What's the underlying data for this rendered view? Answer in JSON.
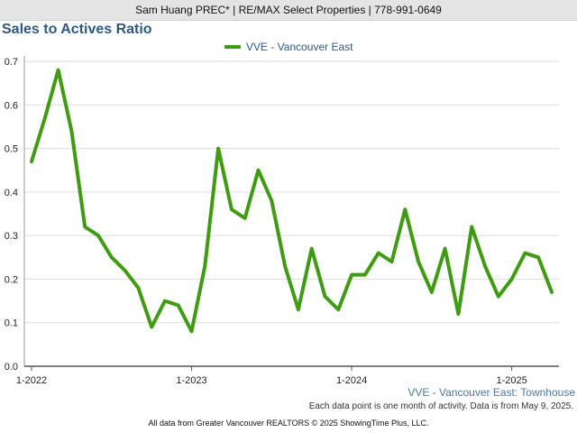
{
  "header": {
    "agent_line": "Sam Huang PREC* | RE/MAX Select Properties | 778-991-0649"
  },
  "chart_data": {
    "type": "line",
    "title": "Sales to Actives Ratio",
    "subtitle": "VVE - Vancouver East: Townhouse",
    "note": "Each data point is one month of activity. Data is from May 9, 2025.",
    "legend_position": "top-center",
    "grid": true,
    "ylim": [
      0,
      0.7
    ],
    "y_ticks": [
      "0.0",
      "0.1",
      "0.2",
      "0.3",
      "0.4",
      "0.5",
      "0.6",
      "0.7"
    ],
    "x_tick_labels": [
      "1-2022",
      "1-2023",
      "1-2024",
      "1-2025"
    ],
    "x_start": "2022-01",
    "x_end": "2025-04",
    "colors": {
      "series": "#3f9b12",
      "title": "#2f5985",
      "grid": "#dddddd"
    },
    "series": [
      {
        "name": "VVE - Vancouver East",
        "x": [
          "2022-01",
          "2022-02",
          "2022-03",
          "2022-04",
          "2022-05",
          "2022-06",
          "2022-07",
          "2022-08",
          "2022-09",
          "2022-10",
          "2022-11",
          "2022-12",
          "2023-01",
          "2023-02",
          "2023-03",
          "2023-04",
          "2023-05",
          "2023-06",
          "2023-07",
          "2023-08",
          "2023-09",
          "2023-10",
          "2023-11",
          "2023-12",
          "2024-01",
          "2024-02",
          "2024-03",
          "2024-04",
          "2024-05",
          "2024-06",
          "2024-07",
          "2024-08",
          "2024-09",
          "2024-10",
          "2024-11",
          "2024-12",
          "2025-01",
          "2025-02",
          "2025-03",
          "2025-04"
        ],
        "values": [
          0.47,
          0.57,
          0.68,
          0.54,
          0.32,
          0.3,
          0.25,
          0.22,
          0.18,
          0.09,
          0.15,
          0.14,
          0.08,
          0.23,
          0.5,
          0.36,
          0.34,
          0.45,
          0.38,
          0.23,
          0.13,
          0.27,
          0.16,
          0.13,
          0.21,
          0.21,
          0.26,
          0.24,
          0.36,
          0.24,
          0.17,
          0.27,
          0.12,
          0.32,
          0.23,
          0.16,
          0.2,
          0.26,
          0.25,
          0.17
        ]
      }
    ]
  },
  "footer": {
    "attribution": "All data from Greater Vancouver REALTORS © 2025 ShowingTime Plus, LLC."
  }
}
